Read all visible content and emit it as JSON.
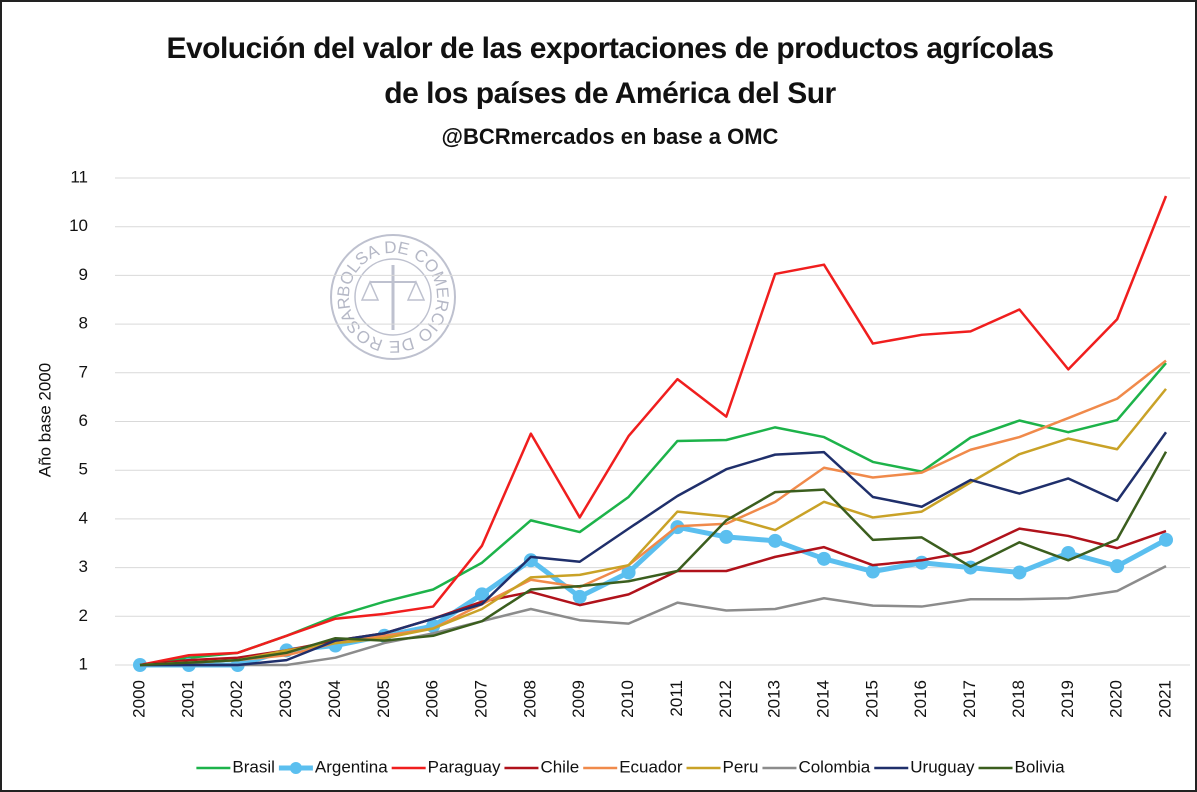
{
  "chart_data": {
    "type": "line",
    "title": "Evolución del valor de las exportaciones de productos agrícolas",
    "title_line2": "de los países de América del Sur",
    "subtitle": "@BCRmercados en base a OMC",
    "watermark": "BOLSA DE COMERCIO DE ROSARIO",
    "ylabel": "Año base 2000",
    "categories": [
      "2000",
      "2001",
      "2002",
      "2003",
      "2004",
      "2005",
      "2006",
      "2007",
      "2008",
      "2009",
      "2010",
      "2011",
      "2012",
      "2013",
      "2014",
      "2015",
      "2016",
      "2017",
      "2018",
      "2019",
      "2020",
      "2021"
    ],
    "ylim": [
      1,
      11
    ],
    "yticks": [
      1,
      2,
      3,
      4,
      5,
      6,
      7,
      8,
      9,
      10,
      11
    ],
    "grid": true,
    "legend": "bottom",
    "series": [
      {
        "name": "Brasil",
        "color": "#1db34a",
        "values": [
          1,
          1.15,
          1.25,
          1.6,
          2.0,
          2.3,
          2.55,
          3.1,
          3.97,
          3.73,
          4.45,
          5.6,
          5.62,
          5.88,
          5.68,
          5.17,
          4.97,
          5.67,
          6.02,
          5.78,
          6.03,
          7.2
        ]
      },
      {
        "name": "Argentina",
        "color": "#5bbfef",
        "marker": true,
        "values": [
          1,
          1.0,
          1.0,
          1.3,
          1.4,
          1.6,
          1.8,
          2.45,
          3.15,
          2.4,
          2.9,
          3.83,
          3.63,
          3.55,
          3.18,
          2.92,
          3.1,
          3.0,
          2.9,
          3.3,
          3.03,
          3.57
        ]
      },
      {
        "name": "Paraguay",
        "color": "#f01e1e",
        "values": [
          1,
          1.2,
          1.25,
          1.6,
          1.95,
          2.05,
          2.2,
          3.45,
          5.75,
          4.03,
          5.7,
          6.87,
          6.1,
          9.03,
          9.22,
          7.6,
          7.78,
          7.85,
          8.3,
          7.07,
          8.1,
          10.63
        ]
      },
      {
        "name": "Chile",
        "color": "#b0121b",
        "values": [
          1,
          1.1,
          1.15,
          1.3,
          1.5,
          1.65,
          1.95,
          2.3,
          2.5,
          2.23,
          2.45,
          2.93,
          2.93,
          3.22,
          3.42,
          3.05,
          3.15,
          3.33,
          3.8,
          3.65,
          3.4,
          3.75
        ]
      },
      {
        "name": "Ecuador",
        "color": "#f08a4b",
        "values": [
          1,
          1.05,
          1.1,
          1.2,
          1.45,
          1.6,
          1.75,
          2.25,
          2.75,
          2.6,
          3.05,
          3.85,
          3.9,
          4.35,
          5.05,
          4.85,
          4.95,
          5.42,
          5.68,
          6.07,
          6.47,
          7.25
        ]
      },
      {
        "name": "Peru",
        "color": "#c9a227",
        "values": [
          1,
          1.05,
          1.1,
          1.3,
          1.45,
          1.55,
          1.75,
          2.15,
          2.8,
          2.85,
          3.05,
          4.15,
          4.05,
          3.77,
          4.35,
          4.03,
          4.15,
          4.75,
          5.33,
          5.65,
          5.43,
          6.67
        ]
      },
      {
        "name": "Colombia",
        "color": "#8c8c8c",
        "values": [
          1,
          1.0,
          1.0,
          1.0,
          1.15,
          1.45,
          1.65,
          1.9,
          2.15,
          1.92,
          1.85,
          2.28,
          2.12,
          2.15,
          2.37,
          2.22,
          2.2,
          2.35,
          2.35,
          2.37,
          2.52,
          3.03
        ]
      },
      {
        "name": "Uruguay",
        "color": "#1f2f6b",
        "values": [
          1,
          1.0,
          1.0,
          1.1,
          1.5,
          1.65,
          1.95,
          2.25,
          3.22,
          3.12,
          3.8,
          4.47,
          5.02,
          5.32,
          5.37,
          4.45,
          4.25,
          4.8,
          4.52,
          4.83,
          4.37,
          5.78
        ]
      },
      {
        "name": "Bolivia",
        "color": "#3b5e1e",
        "values": [
          1,
          1.05,
          1.1,
          1.25,
          1.55,
          1.5,
          1.6,
          1.9,
          2.55,
          2.62,
          2.72,
          2.93,
          3.97,
          4.55,
          4.6,
          3.57,
          3.62,
          3.02,
          3.52,
          3.15,
          3.58,
          5.38
        ]
      }
    ]
  }
}
